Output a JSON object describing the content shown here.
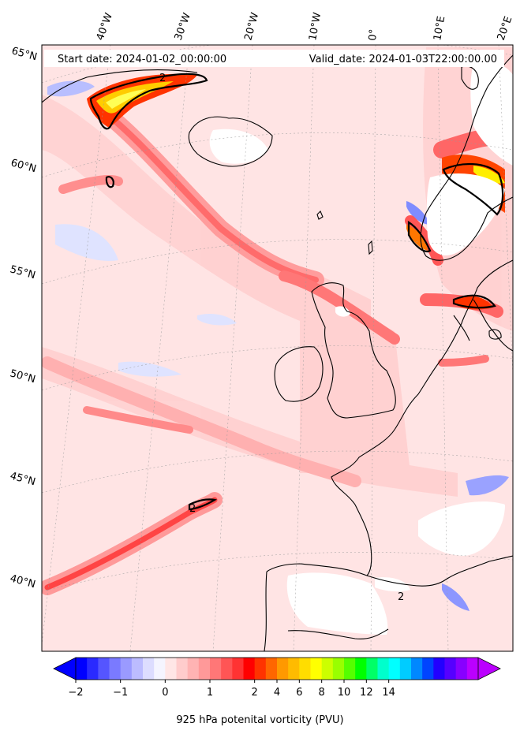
{
  "header": {
    "start_date": "Start date: 2024-01-02_00:00:00",
    "valid_date": "Valid_date: 2024-01-03T22:00:00.00"
  },
  "map": {
    "projection": "conic",
    "region": "North Atlantic and Europe",
    "lon_labels": [
      "40°W",
      "30°W",
      "20°W",
      "10°W",
      "0°",
      "10°E",
      "20°E"
    ],
    "lat_labels": [
      "65°N",
      "60°N",
      "55°N",
      "50°N",
      "45°N",
      "40°N"
    ],
    "contour_label": "2"
  },
  "colorbar": {
    "title": "925 hPa potenital vorticity (PVU)",
    "tick_labels": [
      "−2",
      "−1",
      "0",
      "1",
      "2",
      "4",
      "6",
      "8",
      "10",
      "12",
      "14"
    ],
    "colors": [
      "#0000ff",
      "#2a2aff",
      "#5555ff",
      "#7a7aff",
      "#9a9aff",
      "#bcbcff",
      "#ddddff",
      "#f5f5ff",
      "#ffe6e6",
      "#ffcccc",
      "#ffb3b3",
      "#ff9999",
      "#ff7777",
      "#ff5555",
      "#ff3333",
      "#ff0000",
      "#ff3300",
      "#ff6600",
      "#ff9900",
      "#ffbb00",
      "#ffdd00",
      "#ffff00",
      "#ccff00",
      "#99ff00",
      "#55ff00",
      "#00ff00",
      "#00ff66",
      "#00ffcc",
      "#00ffff",
      "#00ccff",
      "#0088ff",
      "#0044ff",
      "#2200ff",
      "#5500ff",
      "#8800ff",
      "#bb00ff"
    ],
    "extend": "both"
  }
}
